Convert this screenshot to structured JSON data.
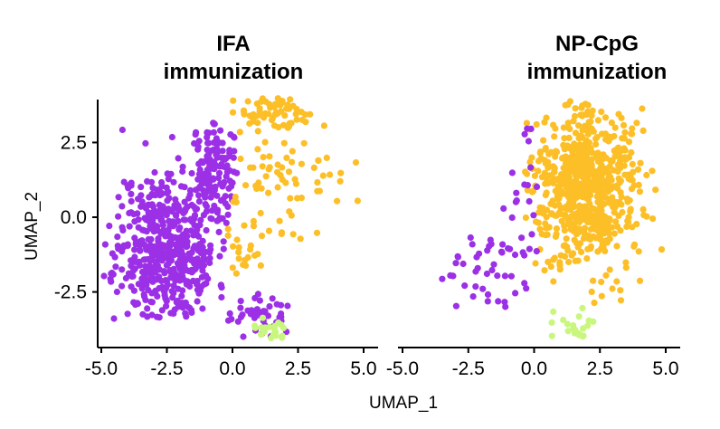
{
  "chart_data": {
    "type": "scatter",
    "xlabel": "UMAP_1",
    "ylabel": "UMAP_2",
    "xlim": [
      -5.0,
      5.0
    ],
    "ylim": [
      -4.3,
      4.3
    ],
    "x_ticks": [
      -5.0,
      -2.5,
      0.0,
      2.5,
      5.0
    ],
    "x_tick_labels": [
      "-5.0",
      "-2.5",
      "0.0",
      "2.5",
      "5.0"
    ],
    "y_ticks": [
      -2.5,
      0.0,
      2.5
    ],
    "y_tick_labels": [
      "-2.5",
      "0.0",
      "2.5"
    ],
    "legend": "none",
    "colors": {
      "purple": "#9b30e6",
      "orange": "#fcbf27",
      "green": "#c9f77e"
    },
    "panels": [
      {
        "title_line1": "IFA",
        "title_line2": "immunization",
        "series": [
          {
            "name": "purple cluster",
            "color": "#9b30e6",
            "clusters": [
              {
                "cx": -2.5,
                "cy": -1.0,
                "sx": 0.95,
                "sy": 1.35,
                "n": 520,
                "seed": 11,
                "xmin": -4.9,
                "xmax": -0.3,
                "ymin": -3.4,
                "ymax": 3.0
              },
              {
                "cx": -0.6,
                "cy": 1.5,
                "sx": 0.6,
                "sy": 1.0,
                "n": 130,
                "seed": 12,
                "xmin": -1.5,
                "xmax": 0.2,
                "ymin": -0.5,
                "ymax": 3.2
              },
              {
                "cx": 0.9,
                "cy": -3.3,
                "sx": 0.7,
                "sy": 0.35,
                "n": 45,
                "seed": 13,
                "xmin": -0.2,
                "xmax": 2.5,
                "ymin": -4.0,
                "ymax": -2.5
              }
            ]
          },
          {
            "name": "orange cluster",
            "color": "#fcbf27",
            "clusters": [
              {
                "cx": 1.5,
                "cy": 3.5,
                "sx": 0.9,
                "sy": 0.3,
                "n": 60,
                "seed": 21,
                "xmin": 0.0,
                "xmax": 3.3,
                "ymin": 2.6,
                "ymax": 4.0
              },
              {
                "cx": 1.2,
                "cy": 1.5,
                "sx": 1.1,
                "sy": 1.1,
                "n": 55,
                "seed": 22,
                "xmin": 0.0,
                "xmax": 3.5,
                "ymin": -0.8,
                "ymax": 3.2
              },
              {
                "cx": 3.9,
                "cy": 1.4,
                "sx": 0.6,
                "sy": 0.5,
                "n": 14,
                "seed": 23,
                "xmin": 2.8,
                "xmax": 5.2,
                "ymin": 0.5,
                "ymax": 2.2
              },
              {
                "cx": 0.2,
                "cy": -1.4,
                "sx": 0.6,
                "sy": 0.8,
                "n": 22,
                "seed": 24,
                "xmin": -0.5,
                "xmax": 1.5,
                "ymin": -3.0,
                "ymax": 0.0
              }
            ]
          },
          {
            "name": "green cluster",
            "color": "#c9f77e",
            "clusters": [
              {
                "cx": 1.3,
                "cy": -3.8,
                "sx": 0.4,
                "sy": 0.2,
                "n": 22,
                "seed": 31,
                "xmin": 0.4,
                "xmax": 2.2,
                "ymin": -4.1,
                "ymax": -3.1
              }
            ]
          }
        ]
      },
      {
        "title_line1": "NP-CpG",
        "title_line2": "immunization",
        "series": [
          {
            "name": "orange cluster",
            "color": "#fcbf27",
            "clusters": [
              {
                "cx": 2.0,
                "cy": 1.0,
                "sx": 1.0,
                "sy": 1.35,
                "n": 700,
                "seed": 41,
                "xmin": -0.4,
                "xmax": 4.9,
                "ymin": -3.6,
                "ymax": 3.9
              }
            ]
          },
          {
            "name": "purple cluster",
            "color": "#9b30e6",
            "clusters": [
              {
                "cx": -1.8,
                "cy": -1.8,
                "sx": 1.1,
                "sy": 0.8,
                "n": 45,
                "seed": 51,
                "xmin": -4.2,
                "xmax": -0.2,
                "ymin": -3.6,
                "ymax": -0.6
              },
              {
                "cx": -0.4,
                "cy": 0.5,
                "sx": 0.3,
                "sy": 1.5,
                "n": 20,
                "seed": 52,
                "xmin": -1.5,
                "xmax": 0.2,
                "ymin": -1.5,
                "ymax": 3.0
              }
            ]
          },
          {
            "name": "green cluster",
            "color": "#c9f77e",
            "clusters": [
              {
                "cx": 1.4,
                "cy": -3.6,
                "sx": 0.5,
                "sy": 0.3,
                "n": 22,
                "seed": 61,
                "xmin": 0.6,
                "xmax": 2.3,
                "ymin": -4.0,
                "ymax": -2.7
              }
            ]
          }
        ]
      }
    ]
  }
}
